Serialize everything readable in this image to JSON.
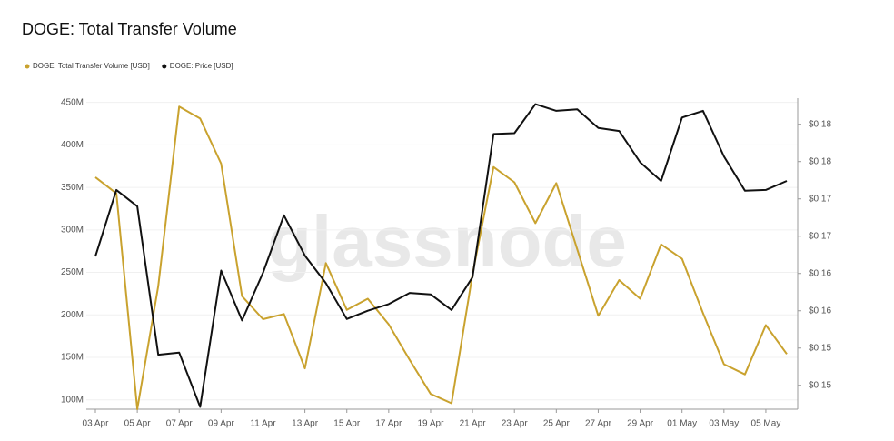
{
  "chart_data": {
    "type": "line",
    "title": "DOGE: Total Transfer Volume",
    "watermark": "glassnode",
    "categories": [
      "03 Apr",
      null,
      "05 Apr",
      null,
      "07 Apr",
      null,
      "09 Apr",
      null,
      "11 Apr",
      null,
      "13 Apr",
      null,
      "15 Apr",
      null,
      "17 Apr",
      null,
      "19 Apr",
      null,
      "21 Apr",
      null,
      "23 Apr",
      null,
      "25 Apr",
      null,
      "27 Apr",
      null,
      "29 Apr",
      null,
      "01 May",
      null,
      "03 May",
      null,
      "05 May",
      null
    ],
    "series": [
      {
        "name": "DOGE: Total Transfer Volume [USD]",
        "color": "#c9a22e",
        "values": [
          362000000,
          343000000,
          89000000,
          234000000,
          445000000,
          431000000,
          378000000,
          222000000,
          195000000,
          201000000,
          137000000,
          261000000,
          206000000,
          219000000,
          189000000,
          147000000,
          107000000,
          96000000,
          248000000,
          374000000,
          356000000,
          308000000,
          355000000,
          277000000,
          199000000,
          241000000,
          219000000,
          283000000,
          266000000,
          202000000,
          142000000,
          130000000,
          188000000,
          154000000
        ]
      },
      {
        "name": "DOGE: Price [USD]",
        "color": "#111111",
        "axis": "y2",
        "values": [
          0.1623,
          0.1712,
          0.169,
          0.1491,
          0.1494,
          0.1421,
          0.1604,
          0.1537,
          0.1601,
          0.1678,
          0.1624,
          0.1587,
          0.1539,
          0.155,
          0.1559,
          0.1574,
          0.1572,
          0.1551,
          0.1595,
          0.1787,
          0.1788,
          0.1827,
          0.1818,
          0.182,
          0.1795,
          0.1791,
          0.1749,
          0.1724,
          0.1809,
          0.1818,
          0.1757,
          0.1711,
          0.1712,
          0.1724
        ]
      }
    ],
    "ylim": [
      89000000,
      455000000
    ],
    "yticks": [
      {
        "value": 100000000,
        "label": "100M"
      },
      {
        "value": 150000000,
        "label": "150M"
      },
      {
        "value": 200000000,
        "label": "200M"
      },
      {
        "value": 250000000,
        "label": "250M"
      },
      {
        "value": 300000000,
        "label": "300M"
      },
      {
        "value": 350000000,
        "label": "350M"
      },
      {
        "value": 400000000,
        "label": "400M"
      },
      {
        "value": 450000000,
        "label": "450M"
      }
    ],
    "y2lim": [
      0.1418,
      0.1835
    ],
    "y2ticks": [
      {
        "value": 0.145,
        "label": "$0.15"
      },
      {
        "value": 0.15,
        "label": "$0.15"
      },
      {
        "value": 0.155,
        "label": "$0.16"
      },
      {
        "value": 0.16,
        "label": "$0.16"
      },
      {
        "value": 0.165,
        "label": "$0.17"
      },
      {
        "value": 0.17,
        "label": "$0.17"
      },
      {
        "value": 0.175,
        "label": "$0.18"
      },
      {
        "value": 0.18,
        "label": "$0.18"
      }
    ],
    "grid": true
  }
}
